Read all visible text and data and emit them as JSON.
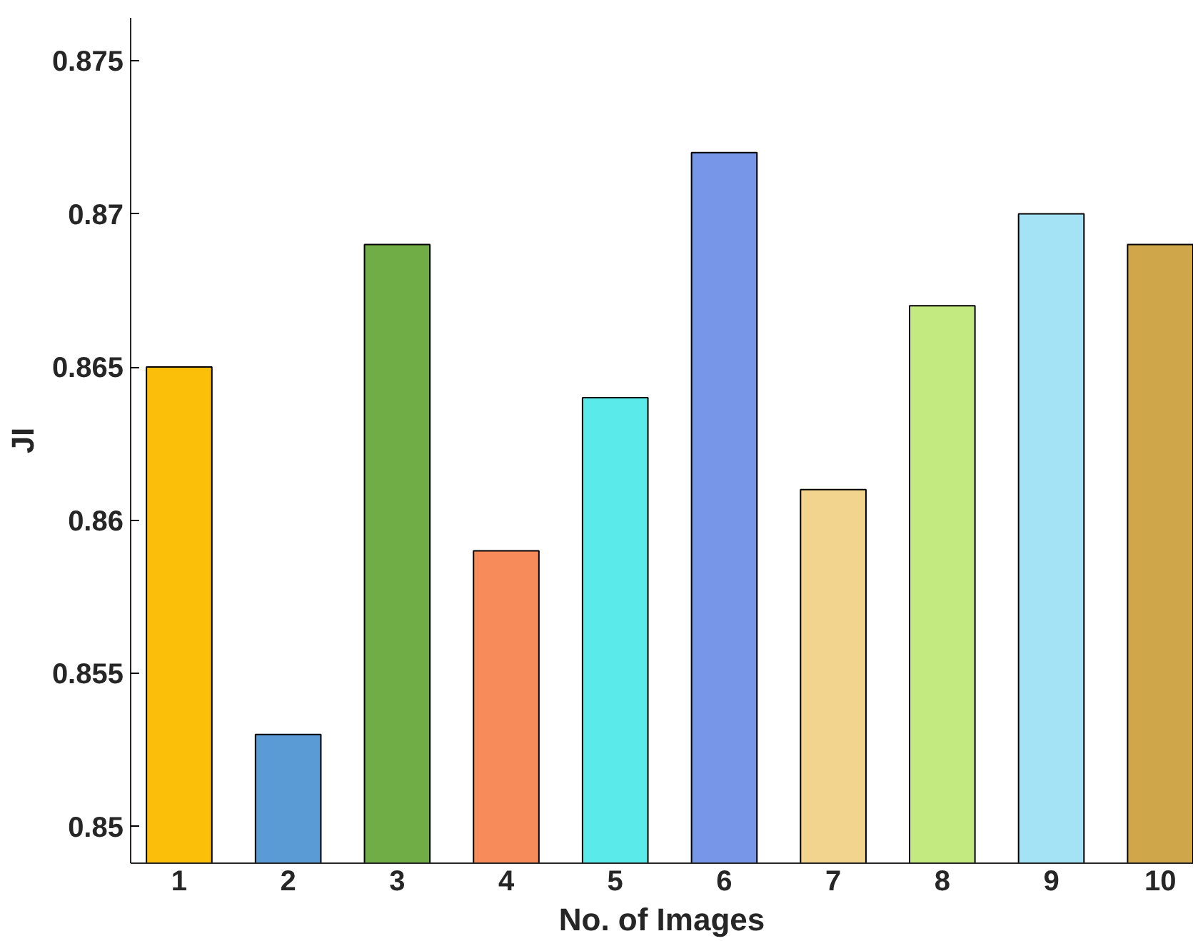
{
  "chart_data": {
    "type": "bar",
    "xlabel": "No. of Images",
    "ylabel": "JI",
    "categories": [
      "1",
      "2",
      "3",
      "4",
      "5",
      "6",
      "7",
      "8",
      "9",
      "10"
    ],
    "values": [
      0.865,
      0.853,
      0.869,
      0.859,
      0.864,
      0.872,
      0.861,
      0.867,
      0.87,
      0.869
    ],
    "colors": [
      "#fbbf0a",
      "#5a9bd5",
      "#70ad47",
      "#f78b5a",
      "#5aeaea",
      "#7896e8",
      "#f3d48f",
      "#c3ea80",
      "#a3e3f5",
      "#cfa64a"
    ],
    "ylim": [
      0.8488,
      0.8764
    ],
    "yticks": [
      0.85,
      0.855,
      0.86,
      0.865,
      0.87,
      0.875
    ],
    "grid": false
  }
}
